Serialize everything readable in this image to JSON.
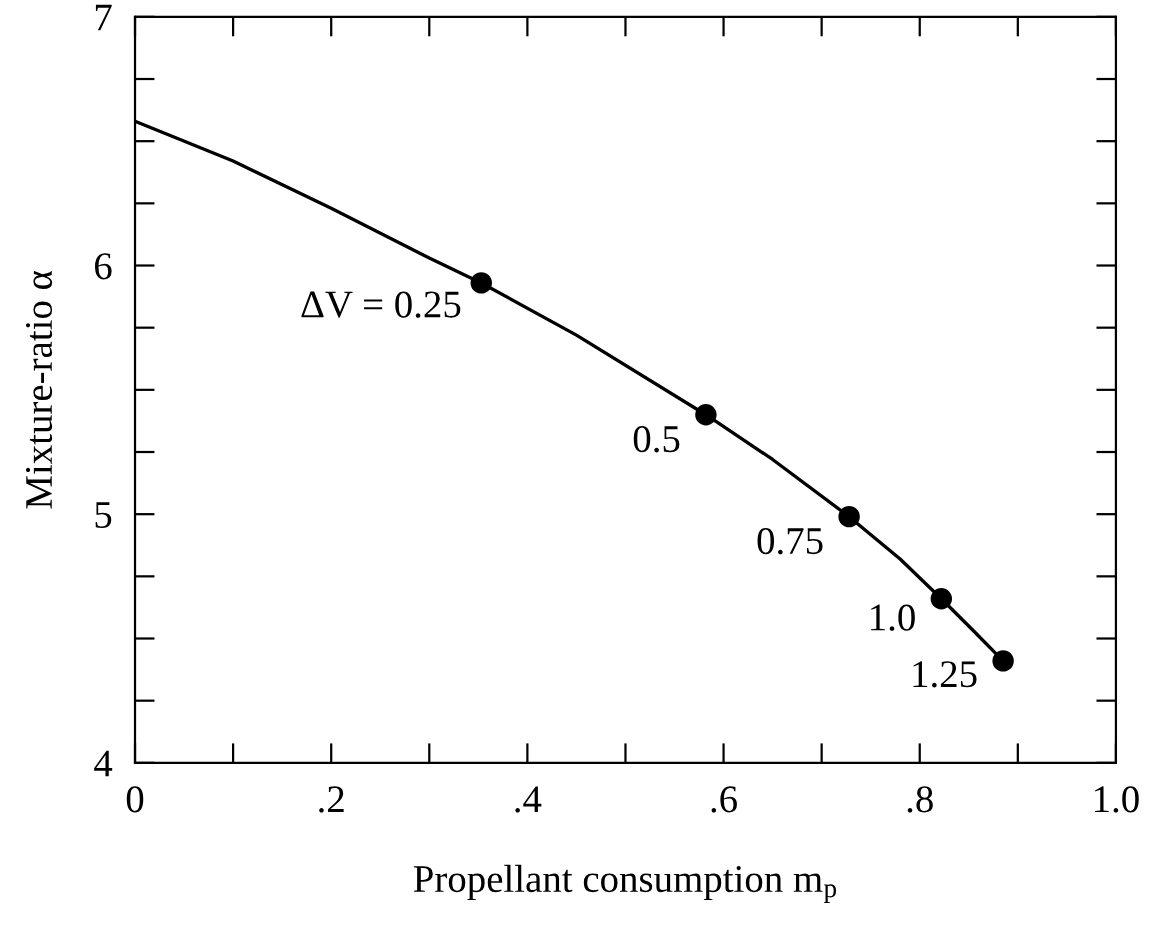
{
  "chart_data": {
    "type": "line",
    "xlabel": "Propellant consumption m$_{p}$",
    "ylabel": "Mixture-ratio α",
    "xlim": [
      0,
      1.0
    ],
    "ylim": [
      4,
      7
    ],
    "xticks": [
      0,
      {
        "value": 0.1,
        "label": null
      },
      {
        "value": 0.2,
        "label": ".2"
      },
      {
        "value": 0.3,
        "label": null
      },
      {
        "value": 0.4,
        "label": ".4"
      },
      {
        "value": 0.5,
        "label": null
      },
      {
        "value": 0.6,
        "label": ".6"
      },
      {
        "value": 0.7,
        "label": null
      },
      {
        "value": 0.8,
        "label": ".8"
      },
      {
        "value": 0.9,
        "label": null
      },
      {
        "value": 1.0,
        "label": "1.0"
      }
    ],
    "yticks": [
      4,
      {
        "value": 4.25,
        "label": null
      },
      {
        "value": 4.5,
        "label": null
      },
      {
        "value": 4.75,
        "label": null
      },
      5,
      {
        "value": 5.25,
        "label": null
      },
      {
        "value": 5.5,
        "label": null
      },
      {
        "value": 5.75,
        "label": null
      },
      6,
      {
        "value": 6.25,
        "label": null
      },
      {
        "value": 6.5,
        "label": null
      },
      {
        "value": 6.75,
        "label": null
      },
      7
    ],
    "grid": false,
    "legend": false,
    "series": [
      {
        "color": "#000000",
        "marker": "none",
        "line_style": "solid",
        "x": [
          0,
          0.1,
          0.2,
          0.3,
          0.353,
          0.45,
          0.582,
          0.65,
          0.728,
          0.78,
          0.822,
          0.855,
          0.885
        ],
        "values": [
          6.58,
          6.42,
          6.23,
          6.03,
          5.93,
          5.72,
          5.4,
          5.22,
          4.99,
          4.82,
          4.66,
          4.53,
          4.41
        ]
      },
      {
        "type": "scatter",
        "color": "#000000",
        "marker": "circle",
        "x": [
          0.353,
          0.582,
          0.728,
          0.822,
          0.885
        ],
        "values": [
          5.93,
          5.4,
          4.99,
          4.66,
          4.41
        ]
      }
    ],
    "annotations": [
      {
        "text": "ΔV = 0.25",
        "x": 0.353,
        "y": 5.93
      },
      {
        "text": "0.5",
        "x": 0.582,
        "y": 5.4
      },
      {
        "text": "0.75",
        "x": 0.728,
        "y": 4.99
      },
      {
        "text": "1.0",
        "x": 0.822,
        "y": 4.66
      },
      {
        "text": "1.25",
        "x": 0.885,
        "y": 4.41
      }
    ]
  }
}
